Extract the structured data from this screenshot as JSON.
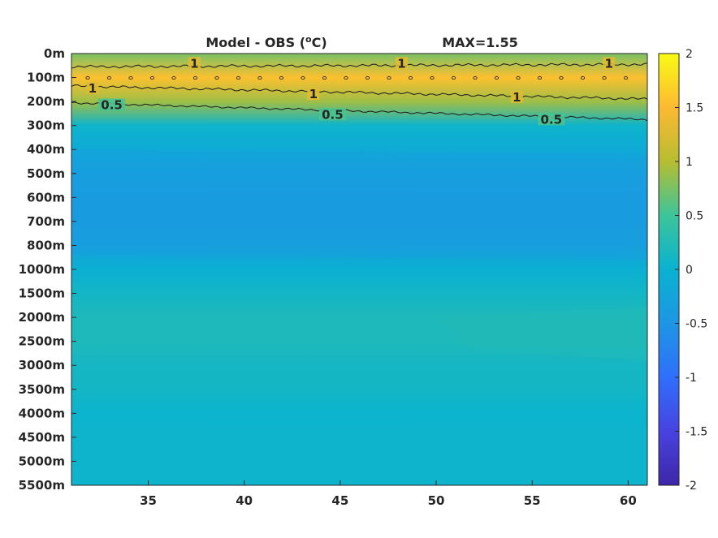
{
  "chart_data": {
    "type": "heatmap",
    "title": "Model - OBS (",
    "title_sup": "o",
    "title_suffix": "C)",
    "max_label": "MAX=1.55",
    "x_ticks": [
      {
        "value": 35,
        "label": "35"
      },
      {
        "value": 40,
        "label": "40"
      },
      {
        "value": 45,
        "label": "45"
      },
      {
        "value": 50,
        "label": "50"
      },
      {
        "value": 55,
        "label": "55"
      },
      {
        "value": 60,
        "label": "60"
      }
    ],
    "xlim": [
      31,
      61
    ],
    "y_levels": [
      "0m",
      "100m",
      "200m",
      "300m",
      "400m",
      "500m",
      "600m",
      "700m",
      "800m",
      "1000m",
      "1500m",
      "2000m",
      "2500m",
      "3000m",
      "3500m",
      "4000m",
      "4500m",
      "5000m",
      "5500m"
    ],
    "colorbar": {
      "ticks": [
        {
          "value": 2,
          "label": "2"
        },
        {
          "value": 1.5,
          "label": "1.5"
        },
        {
          "value": 1,
          "label": "1"
        },
        {
          "value": 0.5,
          "label": "0.5"
        },
        {
          "value": 0,
          "label": "0"
        },
        {
          "value": -0.5,
          "label": "-0.5"
        },
        {
          "value": -1,
          "label": "-1"
        },
        {
          "value": -1.5,
          "label": "-1.5"
        },
        {
          "value": -2,
          "label": "-2"
        }
      ],
      "range": [
        -2,
        2
      ],
      "colors": [
        "#3e26a8",
        "#4743e0",
        "#2f6ffb",
        "#1e96e4",
        "#09b2d0",
        "#3dc49a",
        "#b7bd31",
        "#fcb932",
        "#f9fb14"
      ]
    },
    "profile": [
      {
        "level": "0m",
        "value": 0.75
      },
      {
        "level": "100m",
        "value": 1.55
      },
      {
        "level": "200m",
        "value": 0.9
      },
      {
        "level": "300m",
        "value": 0.05
      },
      {
        "level": "400m",
        "value": -0.15
      },
      {
        "level": "500m",
        "value": -0.3
      },
      {
        "level": "600m",
        "value": -0.35
      },
      {
        "level": "700m",
        "value": -0.35
      },
      {
        "level": "800m",
        "value": -0.3
      },
      {
        "level": "1000m",
        "value": -0.05
      },
      {
        "level": "1500m",
        "value": 0.1
      },
      {
        "level": "2000m",
        "value": 0.2
      },
      {
        "level": "2500m",
        "value": 0.2
      },
      {
        "level": "3000m",
        "value": 0.12
      },
      {
        "level": "3500m",
        "value": 0.1
      },
      {
        "level": "4000m",
        "value": 0.02
      },
      {
        "level": "4500m",
        "value": 0.05
      },
      {
        "level": "5000m",
        "value": 0.05
      },
      {
        "level": "5500m",
        "value": 0.05
      }
    ],
    "contour_labels": [
      {
        "text": "1",
        "x": 37.4,
        "level_index": 0.42
      },
      {
        "text": "1",
        "x": 48.2,
        "level_index": 0.42
      },
      {
        "text": "1",
        "x": 59.0,
        "level_index": 0.42
      },
      {
        "text": "1",
        "x": 32.1,
        "level_index": 1.45
      },
      {
        "text": "1",
        "x": 43.6,
        "level_index": 1.7
      },
      {
        "text": "1",
        "x": 54.2,
        "level_index": 1.82
      },
      {
        "text": "0.5",
        "x": 33.1,
        "level_index": 2.15
      },
      {
        "text": "0.5",
        "x": 44.6,
        "level_index": 2.55
      },
      {
        "text": "0.5",
        "x": 56.0,
        "level_index": 2.75
      }
    ]
  }
}
